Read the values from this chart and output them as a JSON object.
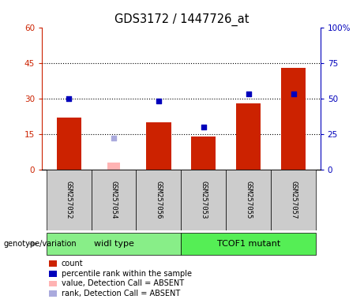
{
  "title": "GDS3172 / 1447726_at",
  "categories": [
    "GSM257052",
    "GSM257054",
    "GSM257056",
    "GSM257053",
    "GSM257055",
    "GSM257057"
  ],
  "group_labels": [
    "widl type",
    "TCOF1 mutant"
  ],
  "red_bars": [
    22,
    null,
    20,
    14,
    28,
    43
  ],
  "red_bar_absent": [
    null,
    3,
    null,
    null,
    null,
    null
  ],
  "blue_squares": [
    50,
    null,
    48,
    30,
    53,
    53
  ],
  "blue_square_absent": [
    null,
    22,
    null,
    null,
    null,
    null
  ],
  "ylim_left": [
    0,
    60
  ],
  "ylim_right": [
    0,
    100
  ],
  "yticks_left": [
    0,
    15,
    30,
    45,
    60
  ],
  "ytick_labels_left": [
    "0",
    "15",
    "30",
    "45",
    "60"
  ],
  "yticks_right": [
    0,
    25,
    50,
    75,
    100
  ],
  "ytick_labels_right": [
    "0",
    "25",
    "50",
    "75",
    "100%"
  ],
  "hlines": [
    15,
    30,
    45
  ],
  "bar_color": "#cc2200",
  "bar_absent_color": "#ffb3b3",
  "square_color": "#0000bb",
  "square_absent_color": "#aaaadd",
  "bg_color": "#cccccc",
  "group_color_1": "#88ee88",
  "group_color_2": "#55ee55",
  "legend_items": [
    {
      "color": "#cc2200",
      "label": "count"
    },
    {
      "color": "#0000bb",
      "label": "percentile rank within the sample"
    },
    {
      "color": "#ffb3b3",
      "label": "value, Detection Call = ABSENT"
    },
    {
      "color": "#aaaadd",
      "label": "rank, Detection Call = ABSENT"
    }
  ],
  "bar_width": 0.55
}
